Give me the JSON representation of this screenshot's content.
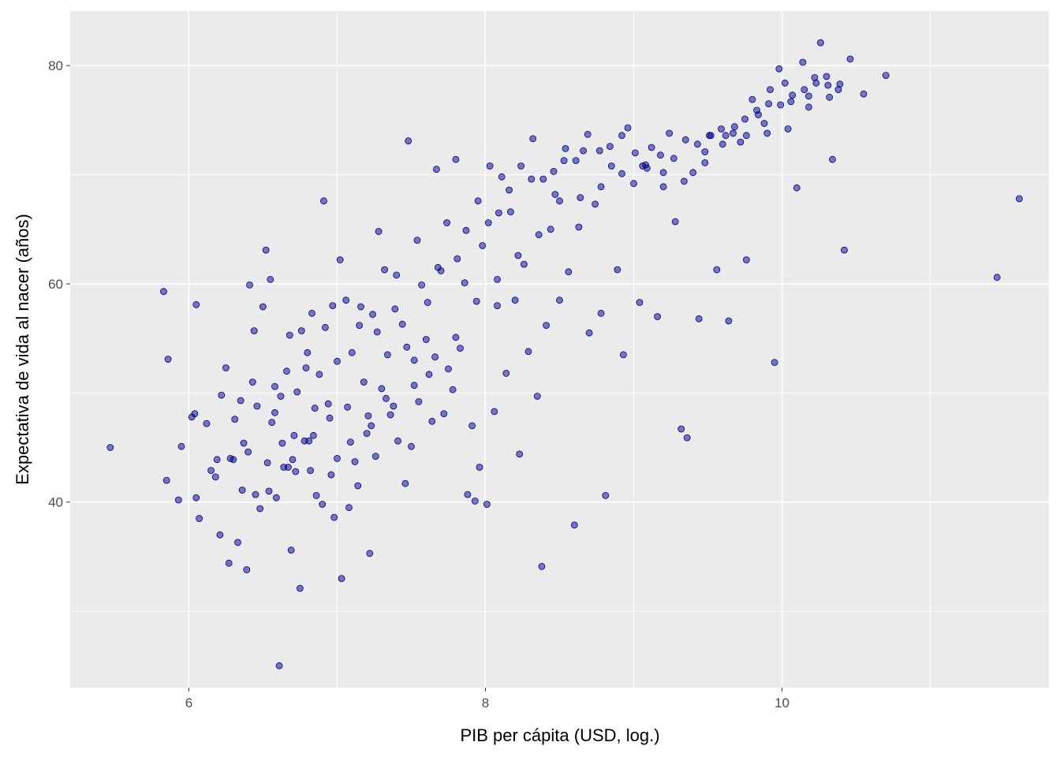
{
  "chart_data": {
    "type": "scatter",
    "title": "",
    "xlabel": "PIB per cápita (USD, log.)",
    "ylabel": "Expectativa de vida al nacer (años)",
    "xlim": [
      5.2,
      11.8
    ],
    "ylim": [
      23.0,
      85.0
    ],
    "x_ticks": [
      6,
      8,
      10
    ],
    "x_tick_labels": [
      "6",
      "8",
      "10"
    ],
    "x_minor_ticks": [
      7,
      9,
      11
    ],
    "y_ticks": [
      40,
      60,
      80
    ],
    "y_tick_labels": [
      "40",
      "60",
      "80"
    ],
    "y_minor_ticks": [
      30,
      50,
      70
    ],
    "grid": true,
    "colors": {
      "panel_background": "#ebebeb",
      "grid": "#ffffff",
      "point_fill": "#00008b",
      "point_fill_opacity": 0.5,
      "point_stroke": "#00008b"
    },
    "series": [
      {
        "points": [
          [
            5.47,
            45.0
          ],
          [
            5.83,
            59.3
          ],
          [
            5.86,
            53.1
          ],
          [
            5.85,
            42.0
          ],
          [
            5.93,
            40.2
          ],
          [
            5.95,
            45.1
          ],
          [
            6.02,
            47.8
          ],
          [
            6.04,
            48.1
          ],
          [
            6.05,
            40.4
          ],
          [
            6.05,
            58.1
          ],
          [
            6.07,
            38.5
          ],
          [
            6.12,
            47.2
          ],
          [
            6.15,
            42.9
          ],
          [
            6.19,
            43.9
          ],
          [
            6.21,
            37.0
          ],
          [
            6.22,
            49.8
          ],
          [
            6.27,
            34.4
          ],
          [
            6.28,
            44.0
          ],
          [
            6.3,
            43.9
          ],
          [
            6.33,
            36.3
          ],
          [
            6.35,
            49.3
          ],
          [
            6.37,
            45.4
          ],
          [
            6.39,
            33.8
          ],
          [
            6.41,
            59.9
          ],
          [
            6.43,
            51.0
          ],
          [
            6.45,
            40.7
          ],
          [
            6.46,
            48.8
          ],
          [
            6.48,
            39.4
          ],
          [
            6.5,
            57.9
          ],
          [
            6.52,
            63.1
          ],
          [
            6.54,
            41.0
          ],
          [
            6.55,
            60.4
          ],
          [
            6.56,
            47.3
          ],
          [
            6.58,
            50.6
          ],
          [
            6.59,
            40.4
          ],
          [
            6.61,
            25.0
          ],
          [
            6.63,
            45.4
          ],
          [
            6.64,
            43.2
          ],
          [
            6.66,
            52.0
          ],
          [
            6.68,
            55.3
          ],
          [
            6.69,
            35.6
          ],
          [
            6.7,
            43.9
          ],
          [
            6.72,
            42.8
          ],
          [
            6.73,
            50.1
          ],
          [
            6.75,
            32.1
          ],
          [
            6.76,
            55.7
          ],
          [
            6.78,
            45.6
          ],
          [
            6.8,
            53.7
          ],
          [
            6.82,
            42.9
          ],
          [
            6.83,
            57.3
          ],
          [
            6.85,
            48.6
          ],
          [
            6.86,
            40.6
          ],
          [
            6.88,
            51.7
          ],
          [
            6.9,
            39.8
          ],
          [
            6.91,
            67.6
          ],
          [
            6.92,
            56.0
          ],
          [
            6.95,
            47.7
          ],
          [
            6.97,
            58.0
          ],
          [
            6.98,
            38.6
          ],
          [
            7.0,
            44.0
          ],
          [
            7.02,
            62.2
          ],
          [
            7.03,
            33.0
          ],
          [
            7.06,
            58.5
          ],
          [
            7.08,
            39.5
          ],
          [
            7.1,
            53.7
          ],
          [
            7.12,
            43.7
          ],
          [
            7.14,
            41.5
          ],
          [
            7.16,
            57.9
          ],
          [
            7.18,
            51.0
          ],
          [
            7.2,
            46.3
          ],
          [
            7.22,
            35.3
          ],
          [
            7.24,
            57.2
          ],
          [
            7.26,
            44.2
          ],
          [
            7.28,
            64.8
          ],
          [
            7.3,
            50.4
          ],
          [
            7.32,
            61.3
          ],
          [
            7.34,
            53.5
          ],
          [
            7.36,
            48.0
          ],
          [
            7.39,
            57.7
          ],
          [
            7.41,
            45.6
          ],
          [
            7.44,
            56.3
          ],
          [
            7.46,
            41.7
          ],
          [
            7.48,
            73.1
          ],
          [
            7.5,
            45.1
          ],
          [
            7.52,
            53.0
          ],
          [
            7.55,
            49.2
          ],
          [
            7.57,
            59.9
          ],
          [
            7.6,
            54.9
          ],
          [
            7.62,
            51.7
          ],
          [
            7.64,
            47.4
          ],
          [
            7.67,
            70.5
          ],
          [
            7.7,
            61.2
          ],
          [
            7.72,
            48.1
          ],
          [
            7.75,
            52.2
          ],
          [
            7.78,
            50.3
          ],
          [
            7.8,
            71.4
          ],
          [
            7.83,
            54.1
          ],
          [
            7.86,
            60.1
          ],
          [
            7.88,
            40.7
          ],
          [
            7.91,
            47.0
          ],
          [
            7.93,
            40.1
          ],
          [
            7.96,
            43.2
          ],
          [
            7.98,
            63.5
          ],
          [
            8.01,
            39.8
          ],
          [
            8.03,
            70.8
          ],
          [
            8.06,
            48.3
          ],
          [
            8.08,
            58.0
          ],
          [
            8.11,
            69.8
          ],
          [
            8.14,
            51.8
          ],
          [
            8.17,
            66.6
          ],
          [
            8.2,
            58.5
          ],
          [
            8.23,
            44.4
          ],
          [
            8.26,
            61.8
          ],
          [
            8.29,
            53.8
          ],
          [
            8.32,
            73.3
          ],
          [
            8.35,
            49.7
          ],
          [
            8.38,
            34.1
          ],
          [
            8.41,
            56.2
          ],
          [
            8.44,
            65.0
          ],
          [
            8.47,
            68.2
          ],
          [
            8.5,
            58.5
          ],
          [
            8.53,
            71.3
          ],
          [
            8.56,
            61.1
          ],
          [
            8.6,
            37.9
          ],
          [
            8.63,
            65.2
          ],
          [
            8.66,
            72.2
          ],
          [
            8.7,
            55.5
          ],
          [
            8.74,
            67.3
          ],
          [
            8.78,
            57.3
          ],
          [
            8.81,
            40.6
          ],
          [
            8.85,
            70.8
          ],
          [
            8.89,
            61.3
          ],
          [
            8.93,
            53.5
          ],
          [
            8.96,
            74.3
          ],
          [
            9.0,
            69.2
          ],
          [
            9.04,
            58.3
          ],
          [
            9.08,
            70.9
          ],
          [
            9.12,
            72.5
          ],
          [
            9.16,
            57.0
          ],
          [
            9.2,
            68.9
          ],
          [
            9.24,
            73.8
          ],
          [
            9.28,
            65.7
          ],
          [
            9.32,
            46.7
          ],
          [
            9.36,
            45.9
          ],
          [
            9.4,
            70.2
          ],
          [
            9.44,
            56.8
          ],
          [
            9.48,
            72.1
          ],
          [
            9.52,
            73.6
          ],
          [
            9.56,
            61.3
          ],
          [
            9.6,
            72.8
          ],
          [
            9.64,
            56.6
          ],
          [
            9.68,
            74.4
          ],
          [
            9.72,
            73.0
          ],
          [
            9.76,
            62.2
          ],
          [
            9.8,
            76.9
          ],
          [
            9.84,
            75.5
          ],
          [
            9.88,
            74.7
          ],
          [
            9.92,
            77.8
          ],
          [
            9.95,
            52.8
          ],
          [
            9.98,
            79.7
          ],
          [
            10.02,
            78.4
          ],
          [
            10.06,
            76.7
          ],
          [
            10.1,
            68.8
          ],
          [
            10.14,
            80.3
          ],
          [
            10.18,
            77.2
          ],
          [
            10.22,
            78.9
          ],
          [
            10.26,
            82.1
          ],
          [
            10.3,
            79.0
          ],
          [
            10.34,
            71.4
          ],
          [
            10.38,
            77.8
          ],
          [
            10.42,
            63.1
          ],
          [
            10.46,
            80.6
          ],
          [
            10.55,
            77.4
          ],
          [
            10.7,
            79.1
          ],
          [
            11.45,
            60.6
          ],
          [
            11.6,
            67.8
          ],
          [
            6.25,
            52.3
          ],
          [
            6.31,
            47.6
          ],
          [
            6.4,
            44.6
          ],
          [
            6.44,
            55.7
          ],
          [
            6.58,
            48.2
          ],
          [
            6.62,
            49.7
          ],
          [
            6.71,
            46.1
          ],
          [
            6.79,
            52.3
          ],
          [
            6.84,
            46.1
          ],
          [
            6.94,
            49.0
          ],
          [
            7.0,
            52.9
          ],
          [
            7.07,
            48.7
          ],
          [
            7.15,
            56.2
          ],
          [
            7.21,
            47.9
          ],
          [
            7.27,
            55.6
          ],
          [
            7.33,
            49.5
          ],
          [
            7.4,
            60.8
          ],
          [
            7.47,
            54.2
          ],
          [
            7.54,
            64.0
          ],
          [
            7.61,
            58.3
          ],
          [
            7.68,
            61.5
          ],
          [
            7.74,
            65.6
          ],
          [
            7.81,
            62.3
          ],
          [
            7.87,
            64.9
          ],
          [
            7.95,
            67.6
          ],
          [
            8.02,
            65.6
          ],
          [
            8.09,
            66.5
          ],
          [
            8.16,
            68.6
          ],
          [
            8.24,
            70.8
          ],
          [
            8.31,
            69.6
          ],
          [
            8.39,
            69.6
          ],
          [
            8.46,
            70.3
          ],
          [
            8.54,
            72.4
          ],
          [
            8.61,
            71.3
          ],
          [
            8.69,
            73.7
          ],
          [
            8.77,
            72.2
          ],
          [
            8.84,
            72.6
          ],
          [
            8.92,
            73.6
          ],
          [
            9.01,
            72.0
          ],
          [
            9.09,
            70.6
          ],
          [
            9.18,
            71.8
          ],
          [
            9.27,
            71.5
          ],
          [
            9.35,
            73.2
          ],
          [
            9.43,
            72.8
          ],
          [
            9.51,
            73.6
          ],
          [
            9.59,
            74.2
          ],
          [
            9.67,
            73.8
          ],
          [
            9.75,
            75.1
          ],
          [
            9.83,
            75.9
          ],
          [
            9.91,
            76.5
          ],
          [
            9.99,
            76.4
          ],
          [
            10.07,
            77.3
          ],
          [
            10.15,
            77.8
          ],
          [
            10.23,
            78.4
          ],
          [
            10.31,
            78.2
          ],
          [
            10.39,
            78.3
          ],
          [
            6.18,
            42.3
          ],
          [
            6.36,
            41.1
          ],
          [
            6.53,
            43.6
          ],
          [
            6.67,
            43.2
          ],
          [
            6.81,
            45.6
          ],
          [
            6.96,
            42.5
          ],
          [
            7.09,
            45.5
          ],
          [
            7.23,
            47.0
          ],
          [
            7.38,
            48.8
          ],
          [
            7.52,
            50.7
          ],
          [
            7.66,
            53.3
          ],
          [
            7.8,
            55.1
          ],
          [
            7.94,
            58.4
          ],
          [
            8.08,
            60.4
          ],
          [
            8.22,
            62.6
          ],
          [
            8.36,
            64.5
          ],
          [
            8.5,
            67.6
          ],
          [
            8.64,
            67.9
          ],
          [
            8.78,
            68.9
          ],
          [
            8.92,
            70.1
          ],
          [
            9.06,
            70.8
          ],
          [
            9.2,
            70.2
          ],
          [
            9.34,
            69.4
          ],
          [
            9.48,
            71.1
          ],
          [
            9.62,
            73.6
          ],
          [
            9.76,
            73.6
          ],
          [
            9.9,
            73.8
          ],
          [
            10.04,
            74.2
          ],
          [
            10.18,
            76.2
          ],
          [
            10.32,
            77.1
          ]
        ]
      }
    ]
  }
}
